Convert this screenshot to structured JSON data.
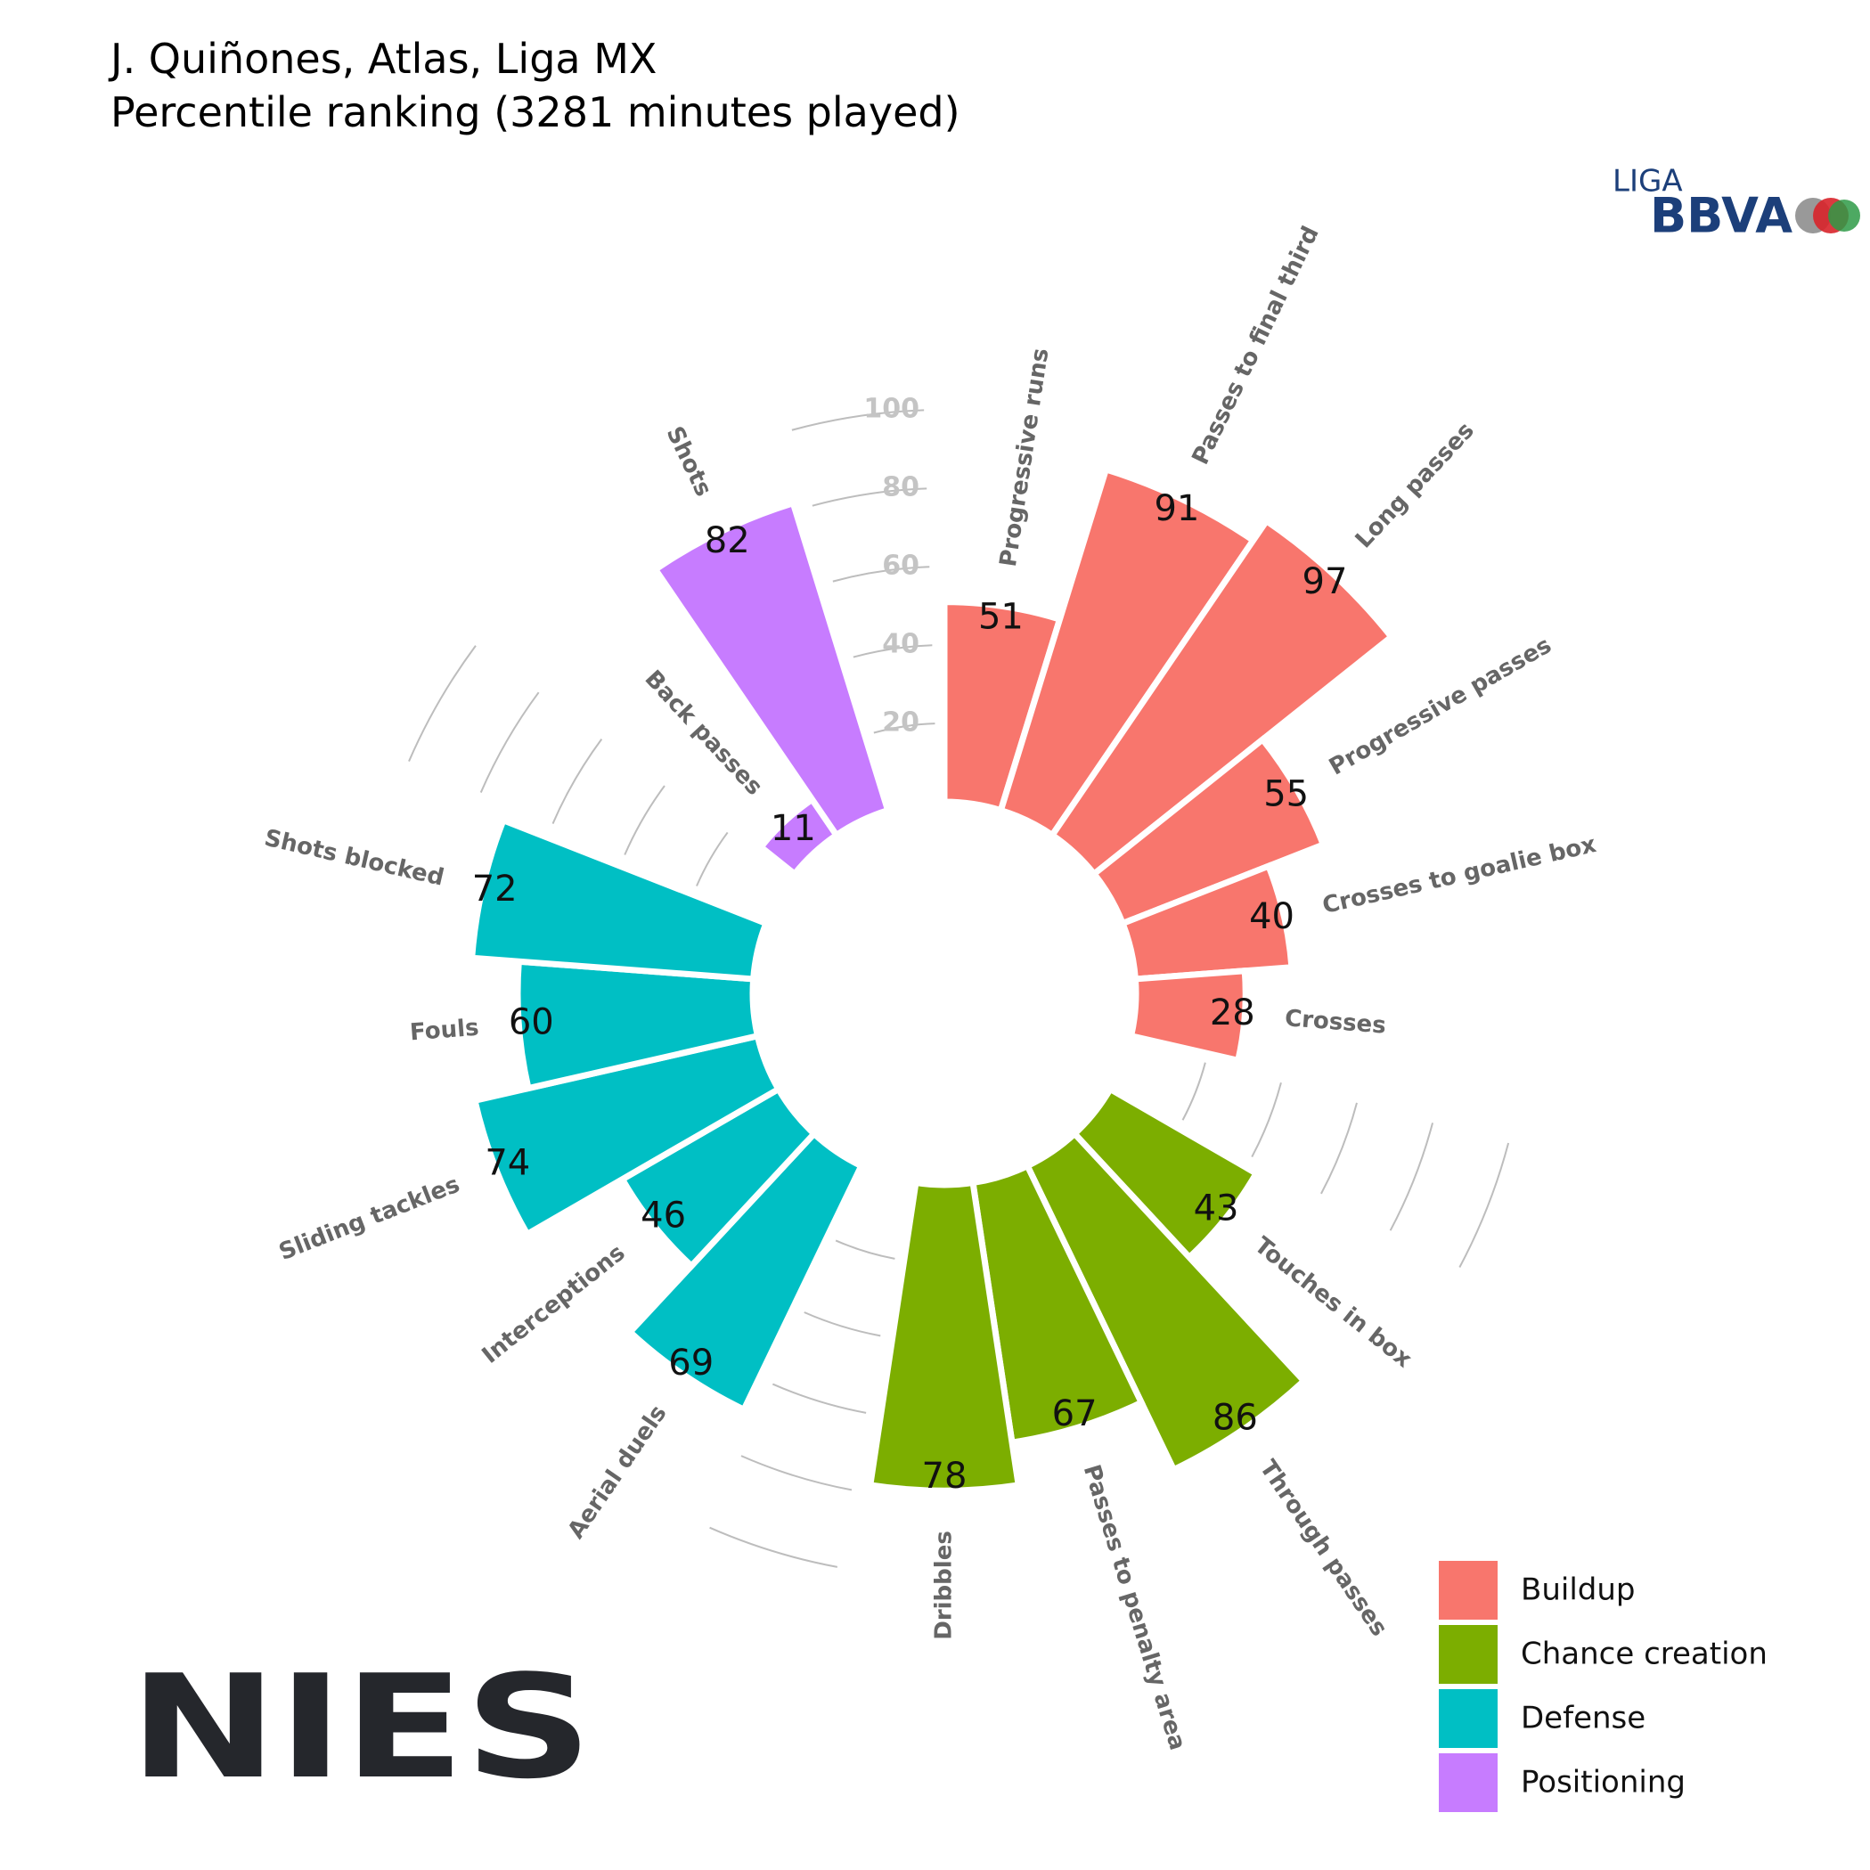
{
  "chart_data": {
    "type": "polar-bar",
    "title": "J. Quiñones, Atlas, Liga MX",
    "subtitle": "Percentile ranking (3281 minutes played)",
    "ylim": [
      0,
      100
    ],
    "yticks": [
      20,
      40,
      60,
      80,
      100
    ],
    "grid": true,
    "legend": "bottom-right",
    "series": [
      {
        "name": "Buildup",
        "color": "#F8766D",
        "categories": [
          "Progressive runs",
          "Passes to final third",
          "Long passes",
          "Progressive passes",
          "Crosses to goalie box",
          "Crosses"
        ],
        "values": [
          51,
          91,
          97,
          55,
          40,
          28
        ]
      },
      {
        "name": "Chance creation",
        "color": "#7CAE00",
        "categories": [
          "Touches in box",
          "Through passes",
          "Passes to penalty area",
          "Dribbles"
        ],
        "values": [
          43,
          86,
          67,
          78
        ]
      },
      {
        "name": "Defense",
        "color": "#00BFC4",
        "categories": [
          "Aerial duels",
          "Interceptions",
          "Sliding tackles",
          "Fouls",
          "Shots blocked"
        ],
        "values": [
          69,
          46,
          74,
          60,
          72
        ]
      },
      {
        "name": "Positioning",
        "color": "#C77CFF",
        "categories": [
          "Back passes",
          "Shots"
        ],
        "values": [
          11,
          82
        ]
      }
    ]
  },
  "logos": {
    "league_small": "LIGA",
    "league_big": "BBVA",
    "brand": "NIES"
  }
}
